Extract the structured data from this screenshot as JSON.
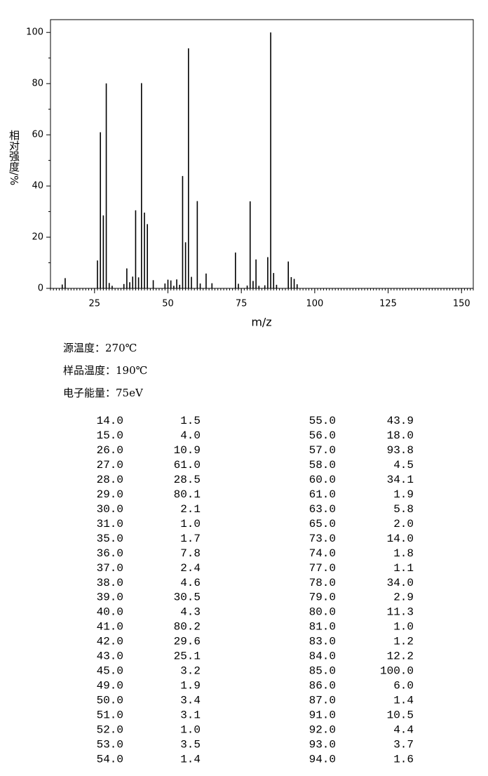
{
  "chart_data": {
    "type": "bar",
    "x_label": "m/z",
    "y_label": "相对强度/%",
    "x": [
      14,
      15,
      26,
      27,
      28,
      29,
      30,
      31,
      35,
      36,
      37,
      38,
      39,
      40,
      41,
      42,
      43,
      45,
      49,
      50,
      51,
      52,
      53,
      54,
      55,
      56,
      57,
      58,
      60,
      61,
      63,
      65,
      73,
      74,
      77,
      78,
      79,
      80,
      81,
      83,
      84,
      85,
      86,
      87,
      91,
      92,
      93,
      94
    ],
    "values": [
      1.5,
      4.0,
      10.9,
      61.0,
      28.5,
      80.1,
      2.1,
      1.0,
      1.7,
      7.8,
      2.4,
      4.6,
      30.5,
      4.3,
      80.2,
      29.6,
      25.1,
      3.2,
      1.9,
      3.4,
      3.1,
      1.0,
      3.5,
      1.4,
      43.9,
      18.0,
      93.8,
      4.5,
      34.1,
      1.9,
      5.8,
      2.0,
      14.0,
      1.8,
      1.1,
      34.0,
      2.9,
      11.3,
      1.0,
      1.2,
      12.2,
      100.0,
      6.0,
      1.4,
      10.5,
      4.4,
      3.7,
      1.6
    ],
    "color": "#000000",
    "xlim": [
      10,
      154
    ],
    "xticks": [
      25,
      50,
      75,
      100,
      125,
      150
    ],
    "ylim": [
      0,
      105
    ],
    "yticks": [
      0,
      20,
      40,
      60,
      80,
      100
    ]
  },
  "info": [
    "源温度：270℃",
    "样品温度：190℃",
    "电子能量：75eV"
  ],
  "table": {
    "rows": [
      [
        "14.0",
        "1.5",
        "55.0",
        "43.9"
      ],
      [
        "15.0",
        "4.0",
        "56.0",
        "18.0"
      ],
      [
        "26.0",
        "10.9",
        "57.0",
        "93.8"
      ],
      [
        "27.0",
        "61.0",
        "58.0",
        "4.5"
      ],
      [
        "28.0",
        "28.5",
        "60.0",
        "34.1"
      ],
      [
        "29.0",
        "80.1",
        "61.0",
        "1.9"
      ],
      [
        "30.0",
        "2.1",
        "63.0",
        "5.8"
      ],
      [
        "31.0",
        "1.0",
        "65.0",
        "2.0"
      ],
      [
        "35.0",
        "1.7",
        "73.0",
        "14.0"
      ],
      [
        "36.0",
        "7.8",
        "74.0",
        "1.8"
      ],
      [
        "37.0",
        "2.4",
        "77.0",
        "1.1"
      ],
      [
        "38.0",
        "4.6",
        "78.0",
        "34.0"
      ],
      [
        "39.0",
        "30.5",
        "79.0",
        "2.9"
      ],
      [
        "40.0",
        "4.3",
        "80.0",
        "11.3"
      ],
      [
        "41.0",
        "80.2",
        "81.0",
        "1.0"
      ],
      [
        "42.0",
        "29.6",
        "83.0",
        "1.2"
      ],
      [
        "43.0",
        "25.1",
        "84.0",
        "12.2"
      ],
      [
        "45.0",
        "3.2",
        "85.0",
        "100.0"
      ],
      [
        "49.0",
        "1.9",
        "86.0",
        "6.0"
      ],
      [
        "50.0",
        "3.4",
        "87.0",
        "1.4"
      ],
      [
        "51.0",
        "3.1",
        "91.0",
        "10.5"
      ],
      [
        "52.0",
        "1.0",
        "92.0",
        "4.4"
      ],
      [
        "53.0",
        "3.5",
        "93.0",
        "3.7"
      ],
      [
        "54.0",
        "1.4",
        "94.0",
        "1.6"
      ]
    ]
  }
}
